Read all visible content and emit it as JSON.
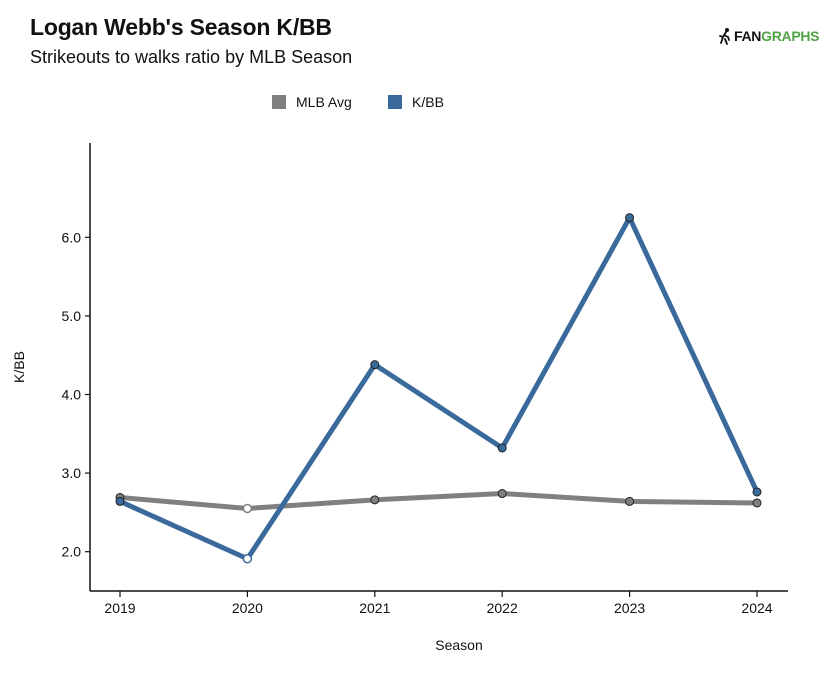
{
  "header": {
    "title": "Logan Webb's Season K/BB",
    "subtitle": "Strikeouts to walks ratio by MLB Season",
    "logo_fan": "FAN",
    "logo_graphs": "GRAPHS"
  },
  "chart_data": {
    "type": "line",
    "xlabel": "Season",
    "ylabel": "K/BB",
    "x": [
      "2019",
      "2020",
      "2021",
      "2022",
      "2023",
      "2024"
    ],
    "ylim": [
      1.5,
      7.2
    ],
    "yticks": [
      2.0,
      3.0,
      4.0,
      5.0,
      6.0
    ],
    "ytick_labels": [
      "2.0",
      "3.0",
      "4.0",
      "5.0",
      "6.0"
    ],
    "legend_position": "top-center",
    "grid": false,
    "series": [
      {
        "name": "MLB Avg",
        "color": "#808080",
        "values": [
          2.69,
          2.55,
          2.66,
          2.74,
          2.64,
          2.62
        ],
        "hollow": [
          false,
          true,
          false,
          false,
          false,
          false
        ]
      },
      {
        "name": "K/BB",
        "color": "#3a6a9c",
        "values": [
          2.64,
          1.91,
          4.38,
          3.32,
          6.25,
          2.76
        ],
        "hollow": [
          false,
          true,
          false,
          false,
          false,
          false
        ]
      }
    ]
  }
}
